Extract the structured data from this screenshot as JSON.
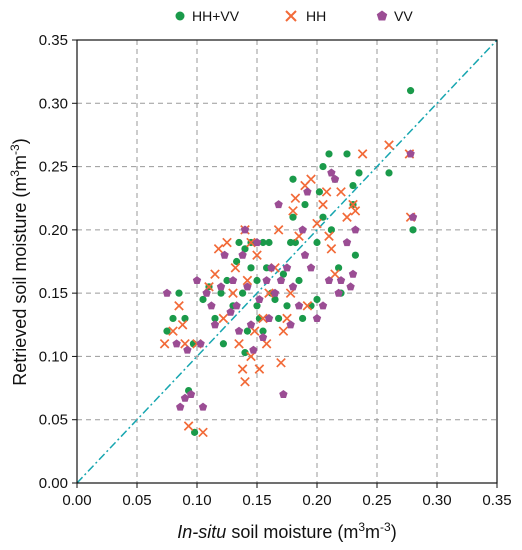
{
  "chart_data": {
    "type": "scatter",
    "xlabel_italic": "In-situ",
    "xlabel_rest": " soil moisture (m",
    "xlabel_sup": "3",
    "xlabel_mid": "m",
    "xlabel_sup2": "-3",
    "xlabel_end": ")",
    "ylabel_main": "Retrieved soil moisture (m",
    "ylabel_sup": "3",
    "ylabel_mid": "m",
    "ylabel_sup2": "-3",
    "ylabel_end": ")",
    "xlim": [
      0,
      0.35
    ],
    "ylim": [
      0,
      0.35
    ],
    "xticks": [
      "0.00",
      "0.05",
      "0.10",
      "0.15",
      "0.20",
      "0.25",
      "0.30",
      "0.35"
    ],
    "yticks": [
      "0.00",
      "0.05",
      "0.10",
      "0.15",
      "0.20",
      "0.25",
      "0.30",
      "0.35"
    ],
    "grid": true,
    "legend_position": "top",
    "reference_line": {
      "style": "dash-dot",
      "color": "#17a6b0",
      "from": [
        0,
        0
      ],
      "to": [
        0.35,
        0.35
      ]
    },
    "series": [
      {
        "name": "HH+VV",
        "marker": "circle",
        "color": "#1a9a4a",
        "points": [
          [
            0.075,
            0.12
          ],
          [
            0.08,
            0.13
          ],
          [
            0.085,
            0.15
          ],
          [
            0.09,
            0.13
          ],
          [
            0.093,
            0.073
          ],
          [
            0.097,
            0.11
          ],
          [
            0.098,
            0.04
          ],
          [
            0.105,
            0.145
          ],
          [
            0.11,
            0.155
          ],
          [
            0.115,
            0.13
          ],
          [
            0.12,
            0.15
          ],
          [
            0.122,
            0.11
          ],
          [
            0.125,
            0.16
          ],
          [
            0.13,
            0.14
          ],
          [
            0.133,
            0.175
          ],
          [
            0.135,
            0.19
          ],
          [
            0.138,
            0.15
          ],
          [
            0.14,
            0.185
          ],
          [
            0.142,
            0.12
          ],
          [
            0.145,
            0.17
          ],
          [
            0.145,
            0.19
          ],
          [
            0.15,
            0.16
          ],
          [
            0.15,
            0.14
          ],
          [
            0.152,
            0.13
          ],
          [
            0.155,
            0.19
          ],
          [
            0.155,
            0.12
          ],
          [
            0.158,
            0.17
          ],
          [
            0.16,
            0.19
          ],
          [
            0.162,
            0.15
          ],
          [
            0.165,
            0.145
          ],
          [
            0.168,
            0.13
          ],
          [
            0.17,
            0.16
          ],
          [
            0.172,
            0.165
          ],
          [
            0.175,
            0.14
          ],
          [
            0.178,
            0.19
          ],
          [
            0.18,
            0.24
          ],
          [
            0.18,
            0.21
          ],
          [
            0.182,
            0.19
          ],
          [
            0.185,
            0.16
          ],
          [
            0.188,
            0.13
          ],
          [
            0.19,
            0.22
          ],
          [
            0.195,
            0.14
          ],
          [
            0.2,
            0.19
          ],
          [
            0.2,
            0.145
          ],
          [
            0.202,
            0.23
          ],
          [
            0.205,
            0.21
          ],
          [
            0.21,
            0.26
          ],
          [
            0.212,
            0.2
          ],
          [
            0.215,
            0.24
          ],
          [
            0.218,
            0.17
          ],
          [
            0.22,
            0.15
          ],
          [
            0.225,
            0.26
          ],
          [
            0.23,
            0.235
          ],
          [
            0.23,
            0.22
          ],
          [
            0.232,
            0.18
          ],
          [
            0.235,
            0.245
          ],
          [
            0.26,
            0.245
          ],
          [
            0.278,
            0.31
          ],
          [
            0.28,
            0.2
          ],
          [
            0.14,
            0.103
          ],
          [
            0.205,
            0.25
          ]
        ]
      },
      {
        "name": "HH",
        "marker": "x",
        "color": "#f26a38",
        "points": [
          [
            0.073,
            0.11
          ],
          [
            0.08,
            0.12
          ],
          [
            0.085,
            0.14
          ],
          [
            0.088,
            0.125
          ],
          [
            0.09,
            0.11
          ],
          [
            0.093,
            0.045
          ],
          [
            0.1,
            0.11
          ],
          [
            0.105,
            0.04
          ],
          [
            0.11,
            0.155
          ],
          [
            0.115,
            0.165
          ],
          [
            0.118,
            0.185
          ],
          [
            0.122,
            0.13
          ],
          [
            0.125,
            0.19
          ],
          [
            0.13,
            0.15
          ],
          [
            0.132,
            0.17
          ],
          [
            0.135,
            0.11
          ],
          [
            0.138,
            0.09
          ],
          [
            0.14,
            0.08
          ],
          [
            0.14,
            0.2
          ],
          [
            0.142,
            0.16
          ],
          [
            0.145,
            0.19
          ],
          [
            0.145,
            0.1
          ],
          [
            0.148,
            0.12
          ],
          [
            0.15,
            0.18
          ],
          [
            0.152,
            0.09
          ],
          [
            0.155,
            0.13
          ],
          [
            0.158,
            0.11
          ],
          [
            0.16,
            0.15
          ],
          [
            0.165,
            0.17
          ],
          [
            0.168,
            0.2
          ],
          [
            0.17,
            0.095
          ],
          [
            0.172,
            0.12
          ],
          [
            0.175,
            0.13
          ],
          [
            0.178,
            0.15
          ],
          [
            0.18,
            0.215
          ],
          [
            0.182,
            0.225
          ],
          [
            0.185,
            0.195
          ],
          [
            0.19,
            0.235
          ],
          [
            0.192,
            0.14
          ],
          [
            0.195,
            0.24
          ],
          [
            0.2,
            0.205
          ],
          [
            0.205,
            0.22
          ],
          [
            0.208,
            0.23
          ],
          [
            0.21,
            0.195
          ],
          [
            0.212,
            0.185
          ],
          [
            0.215,
            0.165
          ],
          [
            0.22,
            0.23
          ],
          [
            0.225,
            0.21
          ],
          [
            0.23,
            0.22
          ],
          [
            0.232,
            0.215
          ],
          [
            0.238,
            0.26
          ],
          [
            0.26,
            0.267
          ],
          [
            0.277,
            0.26
          ],
          [
            0.278,
            0.21
          ]
        ]
      },
      {
        "name": "VV",
        "marker": "pentagon",
        "color": "#9b4d94",
        "points": [
          [
            0.075,
            0.15
          ],
          [
            0.083,
            0.11
          ],
          [
            0.086,
            0.06
          ],
          [
            0.09,
            0.067
          ],
          [
            0.092,
            0.105
          ],
          [
            0.095,
            0.07
          ],
          [
            0.1,
            0.16
          ],
          [
            0.103,
            0.11
          ],
          [
            0.105,
            0.06
          ],
          [
            0.108,
            0.15
          ],
          [
            0.112,
            0.14
          ],
          [
            0.115,
            0.125
          ],
          [
            0.12,
            0.155
          ],
          [
            0.123,
            0.18
          ],
          [
            0.128,
            0.135
          ],
          [
            0.13,
            0.16
          ],
          [
            0.133,
            0.14
          ],
          [
            0.135,
            0.12
          ],
          [
            0.138,
            0.18
          ],
          [
            0.14,
            0.2
          ],
          [
            0.142,
            0.155
          ],
          [
            0.145,
            0.125
          ],
          [
            0.147,
            0.105
          ],
          [
            0.15,
            0.19
          ],
          [
            0.152,
            0.145
          ],
          [
            0.155,
            0.115
          ],
          [
            0.158,
            0.16
          ],
          [
            0.16,
            0.13
          ],
          [
            0.162,
            0.17
          ],
          [
            0.165,
            0.15
          ],
          [
            0.168,
            0.22
          ],
          [
            0.17,
            0.16
          ],
          [
            0.172,
            0.07
          ],
          [
            0.175,
            0.17
          ],
          [
            0.178,
            0.125
          ],
          [
            0.18,
            0.155
          ],
          [
            0.185,
            0.14
          ],
          [
            0.188,
            0.2
          ],
          [
            0.19,
            0.18
          ],
          [
            0.192,
            0.23
          ],
          [
            0.195,
            0.17
          ],
          [
            0.2,
            0.13
          ],
          [
            0.205,
            0.14
          ],
          [
            0.21,
            0.16
          ],
          [
            0.212,
            0.245
          ],
          [
            0.215,
            0.24
          ],
          [
            0.218,
            0.15
          ],
          [
            0.22,
            0.16
          ],
          [
            0.225,
            0.19
          ],
          [
            0.228,
            0.155
          ],
          [
            0.23,
            0.165
          ],
          [
            0.232,
            0.2
          ],
          [
            0.278,
            0.26
          ],
          [
            0.28,
            0.21
          ]
        ]
      }
    ]
  }
}
